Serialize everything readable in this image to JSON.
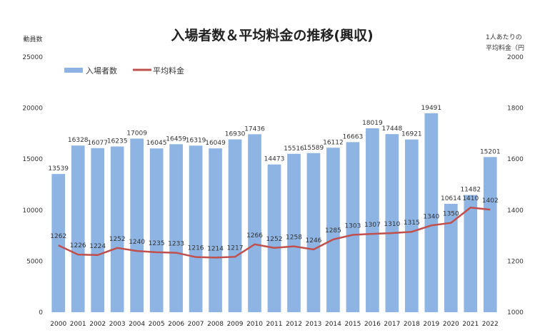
{
  "chart_data": {
    "type": "bar",
    "title": "入場者数＆平均料金の推移(興収)",
    "y_left_label": "動員数",
    "y_right_label_line1": "1人あたりの",
    "y_right_label_line2": "平均料金（円",
    "categories": [
      "2000",
      "2001",
      "2002",
      "2003",
      "2004",
      "2005",
      "2006",
      "2007",
      "2008",
      "2009",
      "2010",
      "2011",
      "2012",
      "2013",
      "2014",
      "2015",
      "2016",
      "2017",
      "2018",
      "2019",
      "2020",
      "2021",
      "2022"
    ],
    "y_left_ticks": [
      "0",
      "5000",
      "10000",
      "15000",
      "20000",
      "25000"
    ],
    "y_right_ticks": [
      "1000",
      "1200",
      "1400",
      "1600",
      "1800",
      "2000"
    ],
    "y_left_range": [
      0,
      25000
    ],
    "y_right_range": [
      1000,
      2000
    ],
    "series": [
      {
        "name": "入場者数",
        "type": "bar",
        "color": "#8eb4e3",
        "axis": "left",
        "values": [
          13539,
          16328,
          16077,
          16235,
          17009,
          16045,
          16459,
          16319,
          16049,
          16930,
          17436,
          14473,
          15516,
          15589,
          16112,
          16663,
          18019,
          17448,
          16921,
          19491,
          10614,
          11482,
          15201
        ],
        "labels": [
          "13539",
          "16328",
          "16077",
          "16235",
          "17009",
          "16045",
          "16459",
          "16319",
          "16049",
          "16930",
          "17436",
          "14473",
          "15516",
          "15589",
          "16112",
          "16663",
          "18019",
          "17448",
          "16921",
          "19491",
          "10614",
          "11482",
          "15201"
        ]
      },
      {
        "name": "平均料金",
        "type": "line",
        "color": "#c0504d",
        "axis": "right",
        "values": [
          1262,
          1226,
          1224,
          1252,
          1240,
          1235,
          1233,
          1216,
          1214,
          1217,
          1266,
          1252,
          1258,
          1246,
          1285,
          1303,
          1307,
          1310,
          1315,
          1340,
          1350,
          1410,
          1402
        ],
        "labels": [
          "1262",
          "1226",
          "1224",
          "1252",
          "1240",
          "1235",
          "1233",
          "1216",
          "1214",
          "1217",
          "1266",
          "1252",
          "1258",
          "1246",
          "1285",
          "1303",
          "1307",
          "1310",
          "1315",
          "1340",
          "1350",
          "1410",
          "1402"
        ]
      }
    ],
    "legend_placement": "top-left",
    "grid": false
  }
}
